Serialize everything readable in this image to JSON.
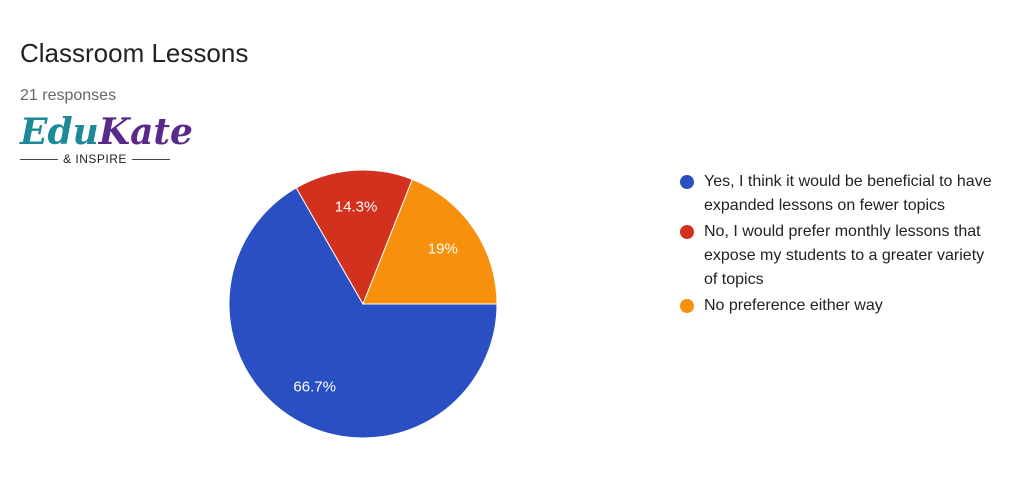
{
  "logo": {
    "parts": [
      "Edu",
      "Kate"
    ],
    "tagline": "& INSPIRE"
  },
  "chart_data": {
    "type": "pie",
    "title": "Classroom Lessons",
    "subtitle": "21 responses",
    "categories": [
      "Yes, I think it would be beneficial to have expanded lessons on fewer topics",
      "No, I would prefer monthly lessons that expose my students to a greater variety of topics",
      "No preference either way"
    ],
    "values": [
      66.7,
      14.3,
      19
    ],
    "value_labels": [
      "66.7%",
      "14.3%",
      "19%"
    ],
    "colors": [
      "#2a4fc3",
      "#d2311d",
      "#f7900c"
    ],
    "legend": "right"
  }
}
